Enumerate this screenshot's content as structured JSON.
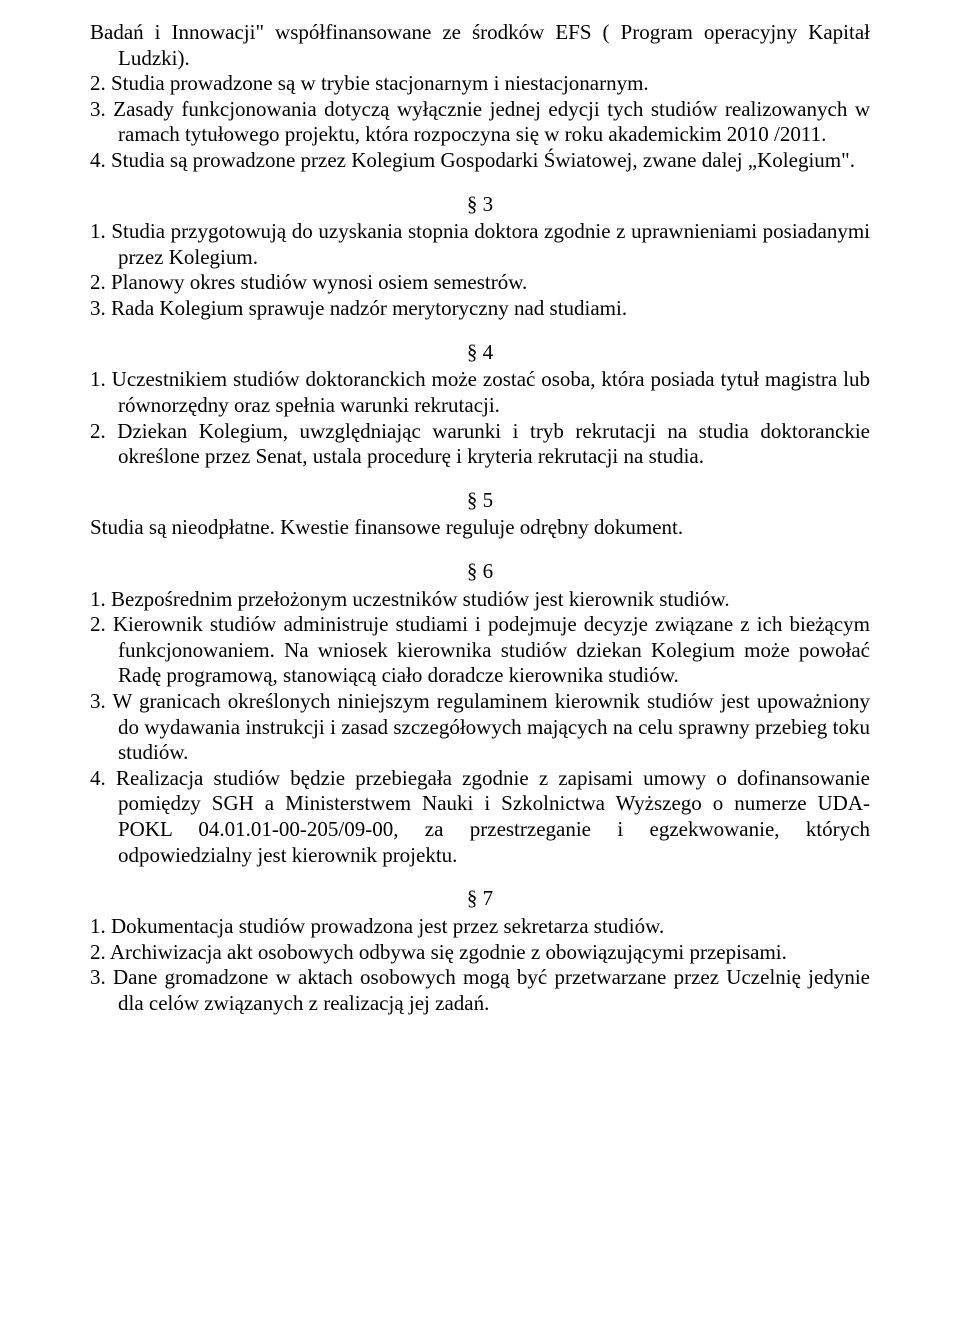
{
  "colors": {
    "text": "#000000",
    "background": "#ffffff"
  },
  "typography": {
    "font_family": "Times New Roman",
    "font_size_pt": 16,
    "line_height": 1.22
  },
  "intro": {
    "line1": "Badań i Innowacji\" współfinansowane ze środków EFS ( Program operacyjny Kapitał Ludzki).",
    "item2": "2. Studia prowadzone są w trybie stacjonarnym i niestacjonarnym.",
    "item3": "3. Zasady funkcjonowania dotyczą wyłącznie jednej edycji tych studiów realizowanych w ramach tytułowego projektu, która rozpoczyna się w roku akademickim 2010 /2011.",
    "item4": "4. Studia są prowadzone przez Kolegium Gospodarki Światowej, zwane dalej „Kolegium\"."
  },
  "s3": {
    "mark": "§ 3",
    "item1": "1. Studia przygotowują do uzyskania stopnia doktora zgodnie z uprawnieniami posiadanymi przez Kolegium.",
    "item2": "2. Planowy okres studiów wynosi osiem semestrów.",
    "item3": "3. Rada Kolegium sprawuje nadzór merytoryczny nad studiami."
  },
  "s4": {
    "mark": "§ 4",
    "item1": "1. Uczestnikiem studiów doktoranckich może zostać osoba, która posiada tytuł magistra lub równorzędny oraz spełnia warunki rekrutacji.",
    "item2": "2. Dziekan Kolegium, uwzględniając warunki i tryb rekrutacji na studia doktoranckie określone przez Senat, ustala procedurę i kryteria rekrutacji na studia."
  },
  "s5": {
    "mark": "§ 5",
    "text": "Studia są nieodpłatne. Kwestie finansowe reguluje odrębny dokument."
  },
  "s6": {
    "mark": "§ 6",
    "item1": "1. Bezpośrednim przełożonym uczestników studiów jest kierownik studiów.",
    "item2": "2. Kierownik studiów administruje studiami i podejmuje decyzje związane z ich bieżącym funkcjonowaniem. Na wniosek kierownika studiów dziekan Kolegium może powołać Radę programową, stanowiącą ciało doradcze kierownika studiów.",
    "item3": "3. W granicach określonych niniejszym regulaminem kierownik studiów jest upoważniony do wydawania instrukcji i zasad szczegółowych mających na celu sprawny przebieg toku studiów.",
    "item4": "4. Realizacja studiów będzie przebiegała zgodnie z zapisami umowy o dofinansowanie pomiędzy SGH a Ministerstwem Nauki i Szkolnictwa Wyższego o numerze UDA- POKL 04.01.01-00-205/09-00, za przestrzeganie i egzekwowanie, których odpowiedzialny jest kierownik projektu."
  },
  "s7": {
    "mark": "§ 7",
    "item1": "1. Dokumentacja studiów prowadzona jest przez sekretarza studiów.",
    "item2": "2. Archiwizacja akt osobowych odbywa się zgodnie z obowiązującymi przepisami.",
    "item3": "3. Dane gromadzone w aktach osobowych mogą być przetwarzane przez Uczelnię jedynie dla celów związanych z realizacją jej zadań."
  }
}
